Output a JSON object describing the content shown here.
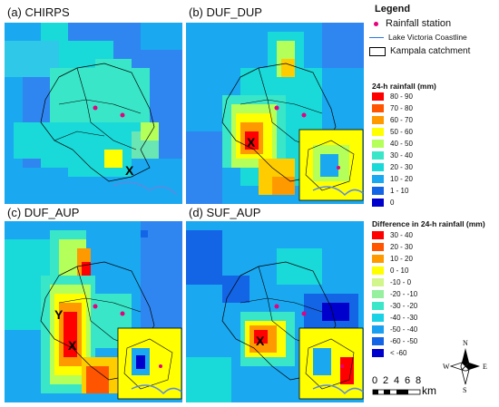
{
  "panels": [
    {
      "title": "(a) CHIRPS"
    },
    {
      "title": "(b) DUF_DUP"
    },
    {
      "title": "(c) DUF_AUP"
    },
    {
      "title": "(d) SUF_AUP"
    }
  ],
  "legend": {
    "title": "Legend",
    "station_label": "Rainfall station",
    "coastline_label": "Lake Victoria Coastline",
    "catchment_label": "Kampala catchment",
    "rainfall_title": "24-h rainfall (mm)",
    "rainfall_classes": [
      {
        "label": "80 - 90",
        "color": "#ff0000"
      },
      {
        "label": "70 - 80",
        "color": "#ff5500"
      },
      {
        "label": "60 - 70",
        "color": "#ff9900"
      },
      {
        "label": "50 - 60",
        "color": "#ffff00"
      },
      {
        "label": "40 - 50",
        "color": "#b4ff5a"
      },
      {
        "label": "30 - 40",
        "color": "#39e6c8"
      },
      {
        "label": "20 - 30",
        "color": "#1ad9d9"
      },
      {
        "label": "10 - 20",
        "color": "#1aa8f0"
      },
      {
        "label": "1 - 10",
        "color": "#1464e6"
      },
      {
        "label": "0",
        "color": "#0000cd"
      }
    ],
    "difference_title": "Difference in 24-h rainfall (mm)",
    "difference_classes": [
      {
        "label": "30 - 40",
        "color": "#ff0000"
      },
      {
        "label": "20 - 30",
        "color": "#ff5500"
      },
      {
        "label": "10 - 20",
        "color": "#ff9900"
      },
      {
        "label": "0 - 10",
        "color": "#ffff00"
      },
      {
        "label": "-10 - 0",
        "color": "#d2f58c"
      },
      {
        "label": "-20 - -10",
        "color": "#96f0a0"
      },
      {
        "label": "-30 - -20",
        "color": "#3ce6c8"
      },
      {
        "label": "-40 - -30",
        "color": "#1ad2e6"
      },
      {
        "label": "-50 - -40",
        "color": "#1aa0f0"
      },
      {
        "label": "-60 - -50",
        "color": "#1464e6"
      },
      {
        "label": "< -60",
        "color": "#0000cd"
      }
    ]
  },
  "compass": {
    "n": "N",
    "s": "S",
    "e": "E",
    "w": "W"
  },
  "scale": {
    "ticks": [
      "0",
      "2",
      "4",
      "6",
      "8"
    ],
    "unit": "km"
  },
  "markers": {
    "x": "X",
    "y": "Y"
  }
}
